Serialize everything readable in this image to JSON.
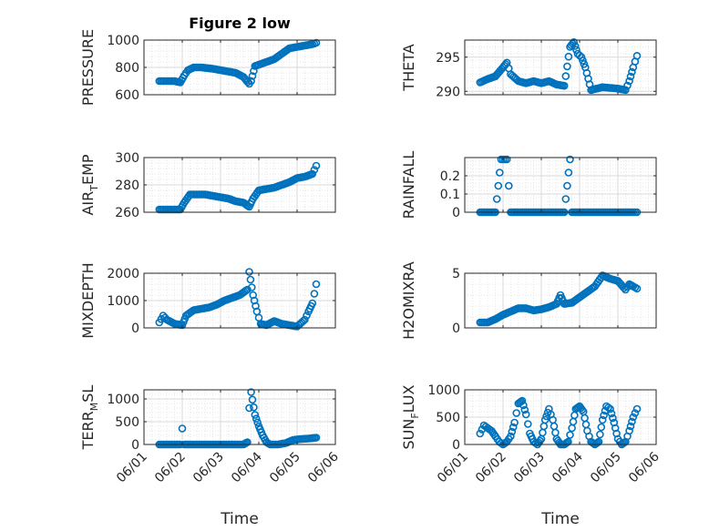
{
  "figure": {
    "title": "Figure 2 low",
    "xlabel": "Time",
    "marker_color": "#0072bd",
    "x_tick_labels": [
      "06/01",
      "06/02",
      "06/03",
      "06/04",
      "06/05",
      "06/06"
    ]
  },
  "chart_data": [
    {
      "type": "scatter",
      "id": "pressure",
      "title": "Figure 2 low",
      "ylabel": "PRESSURE",
      "xlim": [
        0,
        5
      ],
      "ylim": [
        600,
        1000
      ],
      "yticks": [
        600,
        800,
        1000
      ],
      "yticklabels": [
        "600",
        "800",
        "1000"
      ],
      "xticklabels": [
        "",
        "",
        "",
        "",
        "",
        ""
      ],
      "grid": true,
      "series": [
        {
          "x": [
            0.4,
            0.6,
            0.8,
            0.95,
            1.05,
            1.15,
            1.3,
            1.5,
            1.8,
            2.0,
            2.2,
            2.4,
            2.6,
            2.75,
            2.8,
            2.9,
            3.0,
            3.2,
            3.4,
            3.6,
            3.8,
            4.0,
            4.2,
            4.4,
            4.5
          ],
          "y": [
            700,
            700,
            700,
            690,
            740,
            780,
            800,
            800,
            790,
            780,
            770,
            760,
            730,
            680,
            700,
            810,
            820,
            840,
            860,
            900,
            940,
            950,
            960,
            970,
            980
          ]
        }
      ]
    },
    {
      "type": "scatter",
      "id": "theta",
      "ylabel": "THETA",
      "xlim": [
        0,
        5
      ],
      "ylim": [
        289.5,
        297.5
      ],
      "yticks": [
        290,
        295
      ],
      "yticklabels": [
        "290",
        "295"
      ],
      "xticklabels": [
        "",
        "",
        "",
        "",
        "",
        ""
      ],
      "grid": true,
      "series": [
        {
          "x": [
            0.4,
            0.6,
            0.8,
            1.0,
            1.1,
            1.2,
            1.4,
            1.6,
            1.8,
            2.0,
            2.2,
            2.4,
            2.6,
            2.75,
            2.85,
            2.95,
            3.05,
            3.15,
            3.3,
            3.45,
            3.6,
            3.8,
            4.0,
            4.2,
            4.3,
            4.4,
            4.5
          ],
          "y": [
            291.3,
            291.8,
            292.2,
            293.5,
            294.2,
            292.5,
            291.5,
            291.2,
            291.5,
            291.2,
            291.5,
            291.0,
            290.8,
            296.5,
            297.2,
            295.5,
            295.0,
            293.5,
            290.2,
            290.4,
            290.6,
            290.5,
            290.4,
            290.2,
            291.5,
            293.5,
            295.2
          ]
        }
      ]
    },
    {
      "type": "scatter",
      "id": "airtemp",
      "ylabel": "AIR_TEMP",
      "xlim": [
        0,
        5
      ],
      "ylim": [
        260,
        300
      ],
      "yticks": [
        260,
        280,
        300
      ],
      "yticklabels": [
        "260",
        "280",
        "300"
      ],
      "xticklabels": [
        "",
        "",
        "",
        "",
        "",
        ""
      ],
      "grid": true,
      "series": [
        {
          "x": [
            0.4,
            0.6,
            0.8,
            0.95,
            1.05,
            1.2,
            1.4,
            1.6,
            1.8,
            2.0,
            2.2,
            2.4,
            2.6,
            2.75,
            2.85,
            3.0,
            3.2,
            3.4,
            3.6,
            3.8,
            4.0,
            4.2,
            4.4,
            4.5
          ],
          "y": [
            262,
            262,
            262,
            262,
            267,
            273,
            273,
            273,
            272,
            271,
            270,
            268,
            267,
            264,
            270,
            276,
            277,
            278,
            280,
            282,
            285,
            286,
            288,
            294
          ]
        }
      ]
    },
    {
      "type": "scatter",
      "id": "rainfall",
      "ylabel": "RAINFALL",
      "xlim": [
        0,
        5
      ],
      "ylim": [
        0,
        0.3
      ],
      "yticks": [
        0,
        0.1,
        0.2
      ],
      "yticklabels": [
        "0",
        "0.1",
        "0.2"
      ],
      "xticklabels": [
        "",
        "",
        "",
        "",
        "",
        ""
      ],
      "grid": true,
      "series": [
        {
          "x": [
            0.4,
            0.6,
            0.8,
            0.95,
            1.0,
            1.05,
            1.1,
            1.2,
            1.4,
            1.6,
            1.8,
            2.0,
            2.2,
            2.4,
            2.6,
            2.75,
            2.8,
            3.0,
            3.2,
            3.4,
            3.6,
            3.8,
            4.0,
            4.2,
            4.4,
            4.5
          ],
          "y": [
            0,
            0,
            0,
            0.29,
            0.29,
            0.29,
            0.29,
            0,
            0,
            0,
            0,
            0,
            0,
            0,
            0,
            0.29,
            0,
            0,
            0,
            0,
            0,
            0,
            0,
            0,
            0,
            0
          ]
        }
      ]
    },
    {
      "type": "scatter",
      "id": "mixdepth",
      "ylabel": "MIXDEPTH",
      "xlim": [
        0,
        5
      ],
      "ylim": [
        0,
        2000
      ],
      "yticks": [
        0,
        1000,
        2000
      ],
      "yticklabels": [
        "0",
        "1000",
        "2000"
      ],
      "xticklabels": [
        "",
        "",
        "",
        "",
        "",
        ""
      ],
      "grid": true,
      "series": [
        {
          "x": [
            0.4,
            0.5,
            0.6,
            0.8,
            1.0,
            1.1,
            1.3,
            1.5,
            1.7,
            1.9,
            2.1,
            2.3,
            2.5,
            2.7,
            2.75,
            2.85,
            2.95,
            3.05,
            3.2,
            3.4,
            3.6,
            3.8,
            4.0,
            4.2,
            4.3,
            4.4,
            4.5
          ],
          "y": [
            200,
            450,
            300,
            150,
            100,
            450,
            650,
            700,
            750,
            850,
            1000,
            1100,
            1200,
            1400,
            2050,
            1200,
            600,
            150,
            100,
            250,
            150,
            100,
            50,
            300,
            600,
            900,
            1600
          ]
        }
      ]
    },
    {
      "type": "scatter",
      "id": "h2omixra",
      "ylabel": "H2OMIXRA",
      "xlim": [
        0,
        5
      ],
      "ylim": [
        0,
        5
      ],
      "yticks": [
        0,
        5
      ],
      "yticklabels": [
        "0",
        "5"
      ],
      "xticklabels": [
        "",
        "",
        "",
        "",
        "",
        ""
      ],
      "grid": true,
      "series": [
        {
          "x": [
            0.4,
            0.6,
            0.8,
            1.0,
            1.2,
            1.4,
            1.6,
            1.8,
            2.0,
            2.2,
            2.4,
            2.5,
            2.6,
            2.8,
            3.0,
            3.2,
            3.4,
            3.6,
            3.8,
            4.0,
            4.2,
            4.3,
            4.4,
            4.5
          ],
          "y": [
            0.5,
            0.5,
            0.8,
            1.2,
            1.5,
            1.8,
            1.8,
            1.6,
            1.7,
            1.9,
            2.2,
            3.0,
            2.2,
            2.3,
            2.8,
            3.3,
            3.8,
            4.8,
            4.5,
            4.3,
            3.5,
            4.0,
            3.8,
            3.6
          ]
        }
      ]
    },
    {
      "type": "scatter",
      "id": "terrmsl",
      "ylabel": "TERR_MSL",
      "xlim": [
        0,
        5
      ],
      "ylim": [
        0,
        1200
      ],
      "yticks": [
        0,
        500,
        1000
      ],
      "yticklabels": [
        "0",
        "500",
        "1000"
      ],
      "xticklabels": [
        "06/01",
        "06/02",
        "06/03",
        "06/04",
        "06/05",
        "06/06"
      ],
      "grid": true,
      "series": [
        {
          "x": [
            0.4,
            0.6,
            0.8,
            0.95,
            1.0,
            1.05,
            1.2,
            1.4,
            1.6,
            1.8,
            2.0,
            2.2,
            2.4,
            2.6,
            2.7,
            2.75,
            2.8,
            2.9,
            3.0,
            3.1,
            3.2,
            3.3,
            3.5,
            3.7,
            3.9,
            4.1,
            4.3,
            4.5
          ],
          "y": [
            0,
            0,
            0,
            0,
            350,
            0,
            0,
            0,
            0,
            0,
            0,
            0,
            0,
            0,
            50,
            800,
            1150,
            650,
            400,
            200,
            50,
            0,
            0,
            30,
            100,
            120,
            130,
            150
          ]
        }
      ]
    },
    {
      "type": "scatter",
      "id": "sunflux",
      "ylabel": "SUN_FLUX",
      "xlim": [
        0,
        5
      ],
      "ylim": [
        0,
        1000
      ],
      "yticks": [
        0,
        500,
        1000
      ],
      "yticklabels": [
        "0",
        "500",
        "1000"
      ],
      "xticklabels": [
        "06/01",
        "06/02",
        "06/03",
        "06/04",
        "06/05",
        "06/06"
      ],
      "grid": true,
      "series": [
        {
          "x": [
            0.4,
            0.5,
            0.6,
            0.7,
            0.8,
            0.9,
            1.0,
            1.1,
            1.2,
            1.3,
            1.4,
            1.5,
            1.6,
            1.7,
            1.8,
            1.9,
            2.0,
            2.1,
            2.2,
            2.3,
            2.4,
            2.5,
            2.6,
            2.7,
            2.8,
            2.9,
            3.0,
            3.1,
            3.2,
            3.3,
            3.4,
            3.5,
            3.6,
            3.7,
            3.8,
            3.9,
            4.0,
            4.1,
            4.2,
            4.3,
            4.4,
            4.5
          ],
          "y": [
            200,
            350,
            300,
            250,
            150,
            50,
            0,
            50,
            150,
            400,
            750,
            800,
            550,
            200,
            50,
            0,
            100,
            450,
            650,
            450,
            100,
            0,
            0,
            50,
            300,
            650,
            700,
            600,
            250,
            50,
            0,
            50,
            450,
            700,
            650,
            400,
            100,
            0,
            50,
            250,
            500,
            650
          ]
        }
      ]
    }
  ]
}
